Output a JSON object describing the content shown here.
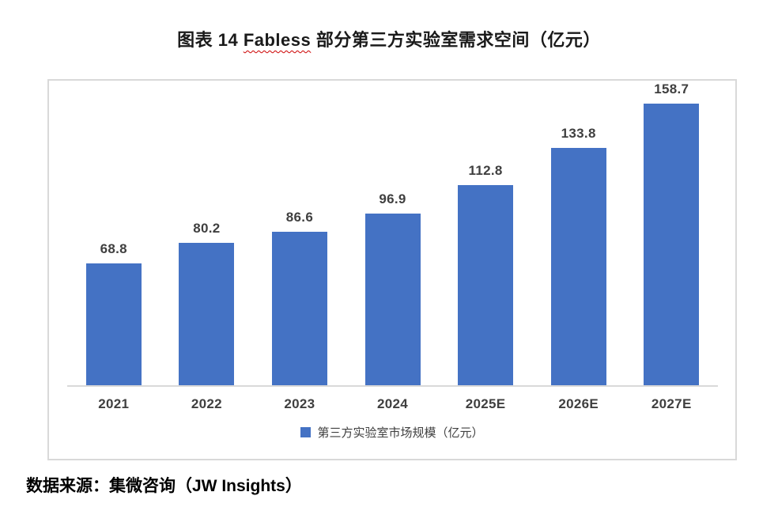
{
  "title": {
    "prefix": "图表 14 ",
    "highlight": "Fabless",
    "suffix": " 部分第三方实验室需求空间（亿元）"
  },
  "chart_data": {
    "type": "bar",
    "title": "图表 14 Fabless 部分第三方实验室需求空间（亿元）",
    "categories": [
      "2021",
      "2022",
      "2023",
      "2024",
      "2025E",
      "2026E",
      "2027E"
    ],
    "values": [
      68.8,
      80.2,
      86.6,
      96.9,
      112.8,
      133.8,
      158.7
    ],
    "series_name": "第三方实验室市场规模（亿元）",
    "legend_label": "第三方实验室市场规模（亿元）",
    "legend_position": "bottom",
    "data_labels": true,
    "grid": false,
    "xlabel": "",
    "ylabel": "",
    "bar_color": "#4472c4"
  },
  "source": {
    "text": "数据来源：集微咨询（JW Insights）"
  },
  "colors": {
    "bar": "#4472c4",
    "frame_border": "#d9d9d9",
    "axis_line": "#d9d9d9",
    "label_text": "#3f3f3f",
    "title_text": "#1a1a1a",
    "spellcheck_underline": "#cc0000"
  }
}
